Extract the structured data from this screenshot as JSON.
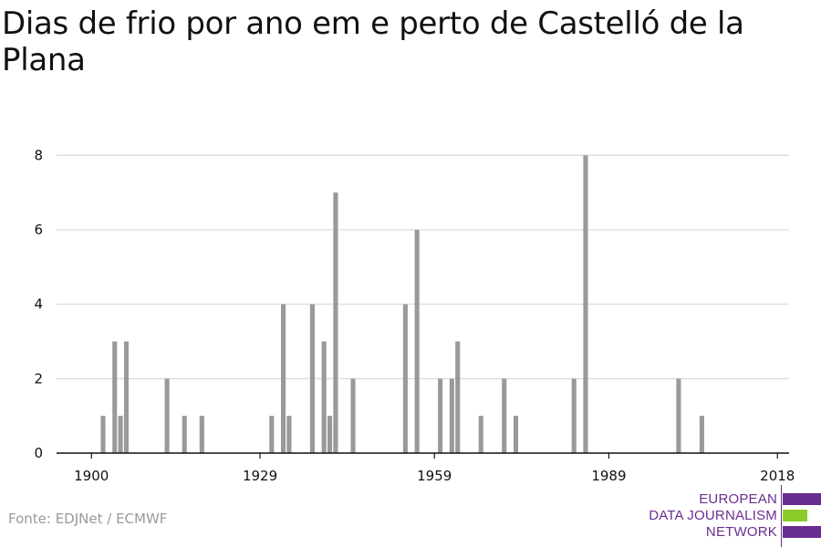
{
  "title": "Dias de frio por ano em e perto de Castelló de la Plana",
  "source": "Fonte: EDJNet / ECMWF",
  "logo": {
    "line1": "EUROPEAN",
    "line2": "DATA JOURNALISM",
    "line3": "NETWORK",
    "colors": {
      "purple": "#6a2d91",
      "green": "#8ccc2a"
    }
  },
  "colors": {
    "bar": "#999999",
    "grid": "#d9d9d9",
    "axis": "#111111",
    "text": "#111111"
  },
  "chart_data": {
    "type": "bar",
    "title": "Dias de frio por ano em e perto de Castelló de la Plana",
    "xlabel": "",
    "ylabel": "",
    "xlim": [
      1894,
      2020
    ],
    "ylim": [
      0,
      8.5
    ],
    "x_ticks": [
      1900,
      1929,
      1959,
      1989,
      2018
    ],
    "y_ticks": [
      0,
      2,
      4,
      6,
      8
    ],
    "grid": true,
    "x": [
      1902,
      1904,
      1905,
      1906,
      1913,
      1916,
      1919,
      1931,
      1933,
      1934,
      1938,
      1940,
      1941,
      1942,
      1945,
      1954,
      1956,
      1960,
      1962,
      1963,
      1967,
      1971,
      1973,
      1983,
      1985,
      2001,
      2005
    ],
    "values": [
      1,
      3,
      1,
      3,
      2,
      1,
      1,
      1,
      4,
      1,
      4,
      3,
      1,
      7,
      2,
      4,
      6,
      2,
      2,
      3,
      1,
      2,
      1,
      2,
      8,
      2,
      1
    ]
  }
}
